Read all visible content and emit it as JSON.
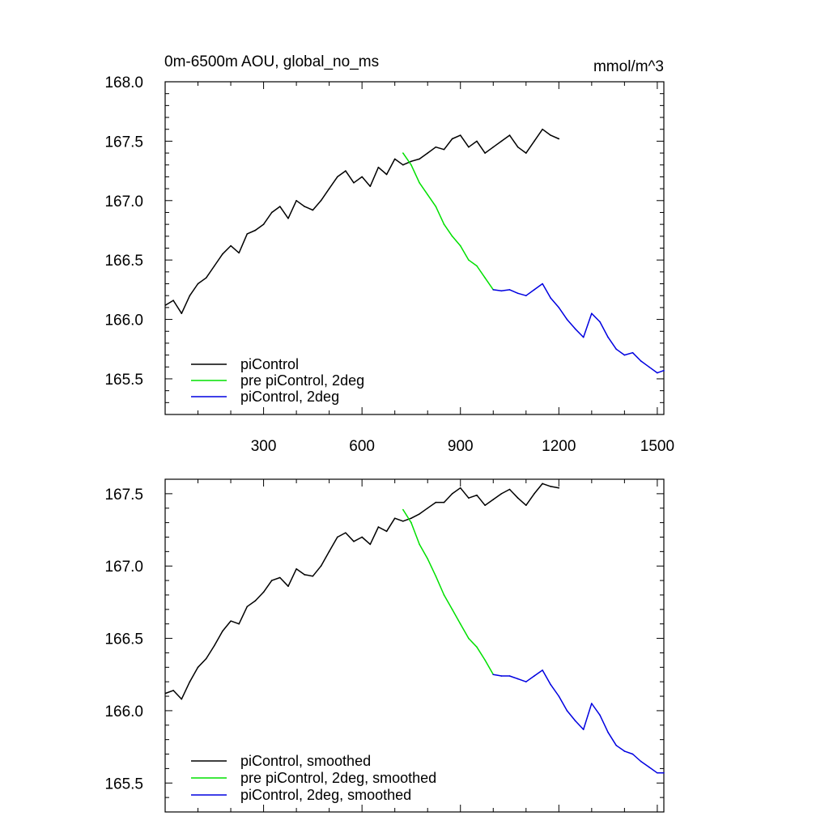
{
  "chart_data": [
    {
      "type": "line",
      "title": "0m-6500m AOU, global_no_ms",
      "units": "mmol/m^3",
      "xlabel": "",
      "ylabel": "",
      "xlim": [
        0,
        1520
      ],
      "ylim": [
        165.2,
        168.0
      ],
      "xticks": [
        300,
        600,
        900,
        1200,
        1500
      ],
      "yticks": [
        165.5,
        166.0,
        166.5,
        167.0,
        167.5,
        168.0
      ],
      "ytick_labels": [
        "165.5",
        "166.0",
        "166.5",
        "167.0",
        "167.5",
        "168.0"
      ],
      "xtick_labels": [
        "300",
        "600",
        "900",
        "1200",
        "1500"
      ],
      "legend_position": "bottom-left",
      "series": [
        {
          "name": "piControl",
          "color": "#000000",
          "x": [
            1,
            25,
            50,
            75,
            100,
            125,
            150,
            175,
            200,
            225,
            250,
            275,
            300,
            325,
            350,
            375,
            400,
            425,
            450,
            475,
            500,
            525,
            550,
            575,
            600,
            625,
            650,
            675,
            700,
            725,
            750,
            775,
            800,
            825,
            850,
            875,
            900,
            925,
            950,
            975,
            1000,
            1025,
            1050,
            1075,
            1100,
            1125,
            1150,
            1175,
            1200
          ],
          "values": [
            166.12,
            166.16,
            166.05,
            166.2,
            166.3,
            166.35,
            166.45,
            166.55,
            166.62,
            166.56,
            166.72,
            166.75,
            166.8,
            166.9,
            166.95,
            166.85,
            167.0,
            166.95,
            166.92,
            167.0,
            167.1,
            167.2,
            167.25,
            167.15,
            167.2,
            167.12,
            167.28,
            167.22,
            167.35,
            167.3,
            167.33,
            167.35,
            167.4,
            167.45,
            167.43,
            167.52,
            167.55,
            167.45,
            167.5,
            167.4,
            167.45,
            167.5,
            167.55,
            167.45,
            167.4,
            167.5,
            167.6,
            167.55,
            167.52
          ]
        },
        {
          "name": "pre piControl, 2deg",
          "color": "#00e000",
          "x": [
            725,
            750,
            775,
            800,
            825,
            850,
            875,
            900,
            925,
            950,
            975,
            1000
          ],
          "values": [
            167.4,
            167.3,
            167.15,
            167.05,
            166.95,
            166.8,
            166.7,
            166.62,
            166.5,
            166.45,
            166.35,
            166.25
          ]
        },
        {
          "name": "piControl, 2deg",
          "color": "#0000e0",
          "x": [
            1000,
            1025,
            1050,
            1075,
            1100,
            1125,
            1150,
            1175,
            1200,
            1225,
            1250,
            1275,
            1300,
            1325,
            1350,
            1375,
            1400,
            1425,
            1450,
            1475,
            1500,
            1520
          ],
          "values": [
            166.25,
            166.24,
            166.25,
            166.22,
            166.2,
            166.25,
            166.3,
            166.18,
            166.1,
            166.0,
            165.92,
            165.85,
            166.05,
            165.98,
            165.85,
            165.75,
            165.7,
            165.72,
            165.65,
            165.6,
            165.55,
            165.57
          ]
        }
      ]
    },
    {
      "type": "line",
      "title": "",
      "xlabel": "",
      "ylabel": "",
      "xlim": [
        0,
        1520
      ],
      "ylim": [
        165.3,
        167.6
      ],
      "xticks": [
        300,
        600,
        900,
        1200,
        1500
      ],
      "yticks": [
        165.5,
        166.0,
        166.5,
        167.0,
        167.5
      ],
      "ytick_labels": [
        "165.5",
        "166.0",
        "166.5",
        "167.0",
        "167.5"
      ],
      "legend_position": "bottom-left",
      "series": [
        {
          "name": "piControl, smoothed",
          "color": "#000000",
          "x": [
            1,
            25,
            50,
            75,
            100,
            125,
            150,
            175,
            200,
            225,
            250,
            275,
            300,
            325,
            350,
            375,
            400,
            425,
            450,
            475,
            500,
            525,
            550,
            575,
            600,
            625,
            650,
            675,
            700,
            725,
            750,
            775,
            800,
            825,
            850,
            875,
            900,
            925,
            950,
            975,
            1000,
            1025,
            1050,
            1075,
            1100,
            1125,
            1150,
            1175,
            1200
          ],
          "values": [
            166.12,
            166.14,
            166.08,
            166.2,
            166.3,
            166.36,
            166.45,
            166.55,
            166.62,
            166.6,
            166.72,
            166.76,
            166.82,
            166.9,
            166.92,
            166.86,
            166.98,
            166.94,
            166.93,
            167.0,
            167.1,
            167.2,
            167.23,
            167.17,
            167.2,
            167.15,
            167.27,
            167.24,
            167.33,
            167.31,
            167.33,
            167.36,
            167.4,
            167.44,
            167.44,
            167.5,
            167.54,
            167.47,
            167.49,
            167.42,
            167.46,
            167.5,
            167.53,
            167.47,
            167.42,
            167.5,
            167.57,
            167.55,
            167.54
          ]
        },
        {
          "name": "pre piControl, 2deg, smoothed",
          "color": "#00e000",
          "x": [
            725,
            750,
            775,
            800,
            825,
            850,
            875,
            900,
            925,
            950,
            975,
            1000
          ],
          "values": [
            167.39,
            167.3,
            167.15,
            167.05,
            166.93,
            166.8,
            166.7,
            166.6,
            166.5,
            166.44,
            166.35,
            166.25
          ]
        },
        {
          "name": "piControl, 2deg, smoothed",
          "color": "#0000e0",
          "x": [
            1000,
            1025,
            1050,
            1075,
            1100,
            1125,
            1150,
            1175,
            1200,
            1225,
            1250,
            1275,
            1300,
            1325,
            1350,
            1375,
            1400,
            1425,
            1450,
            1475,
            1500,
            1520
          ],
          "values": [
            166.25,
            166.24,
            166.24,
            166.22,
            166.2,
            166.24,
            166.28,
            166.18,
            166.1,
            166.0,
            165.93,
            165.87,
            166.05,
            165.97,
            165.85,
            165.76,
            165.72,
            165.7,
            165.65,
            165.61,
            165.57,
            165.57
          ]
        }
      ]
    }
  ]
}
